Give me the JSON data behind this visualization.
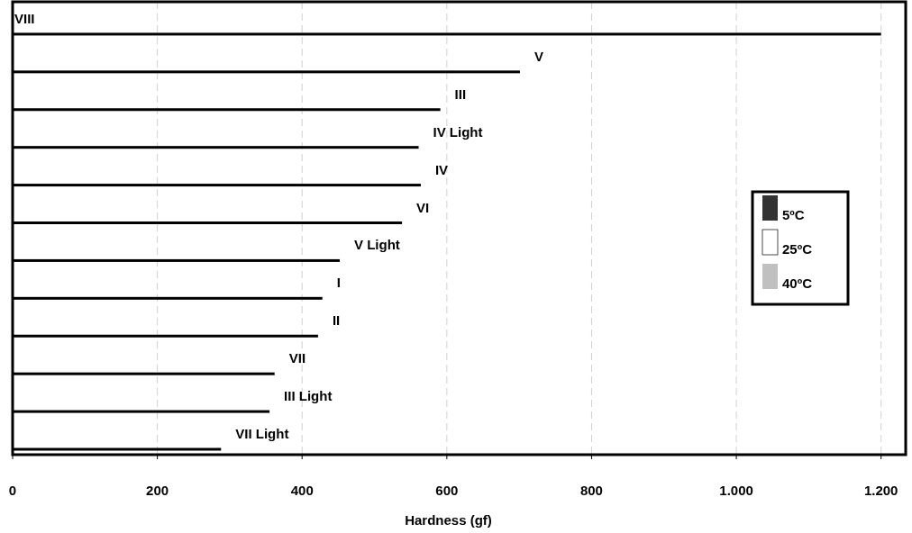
{
  "chart_data": {
    "type": "bar",
    "orientation": "horizontal",
    "xlabel": "Hardness (gf)",
    "categories": [
      "VIII",
      "V",
      "III",
      "IV Light",
      "IV",
      "VI",
      "V Light",
      "I",
      "II",
      "VII",
      "III Light",
      "VII Light"
    ],
    "values": [
      1200,
      701,
      591,
      561,
      564,
      538,
      452,
      428,
      422,
      362,
      355,
      288
    ],
    "color": "#000000",
    "xlim": [
      0,
      1234
    ],
    "xticks": [
      0,
      200,
      400,
      600,
      800,
      {
        "value": 1000,
        "label": "1.000"
      },
      {
        "value": 1200,
        "label": "1.200"
      }
    ],
    "grid": "x",
    "annotations": [
      "5ºC",
      "25ºC",
      "40ºC"
    ]
  }
}
